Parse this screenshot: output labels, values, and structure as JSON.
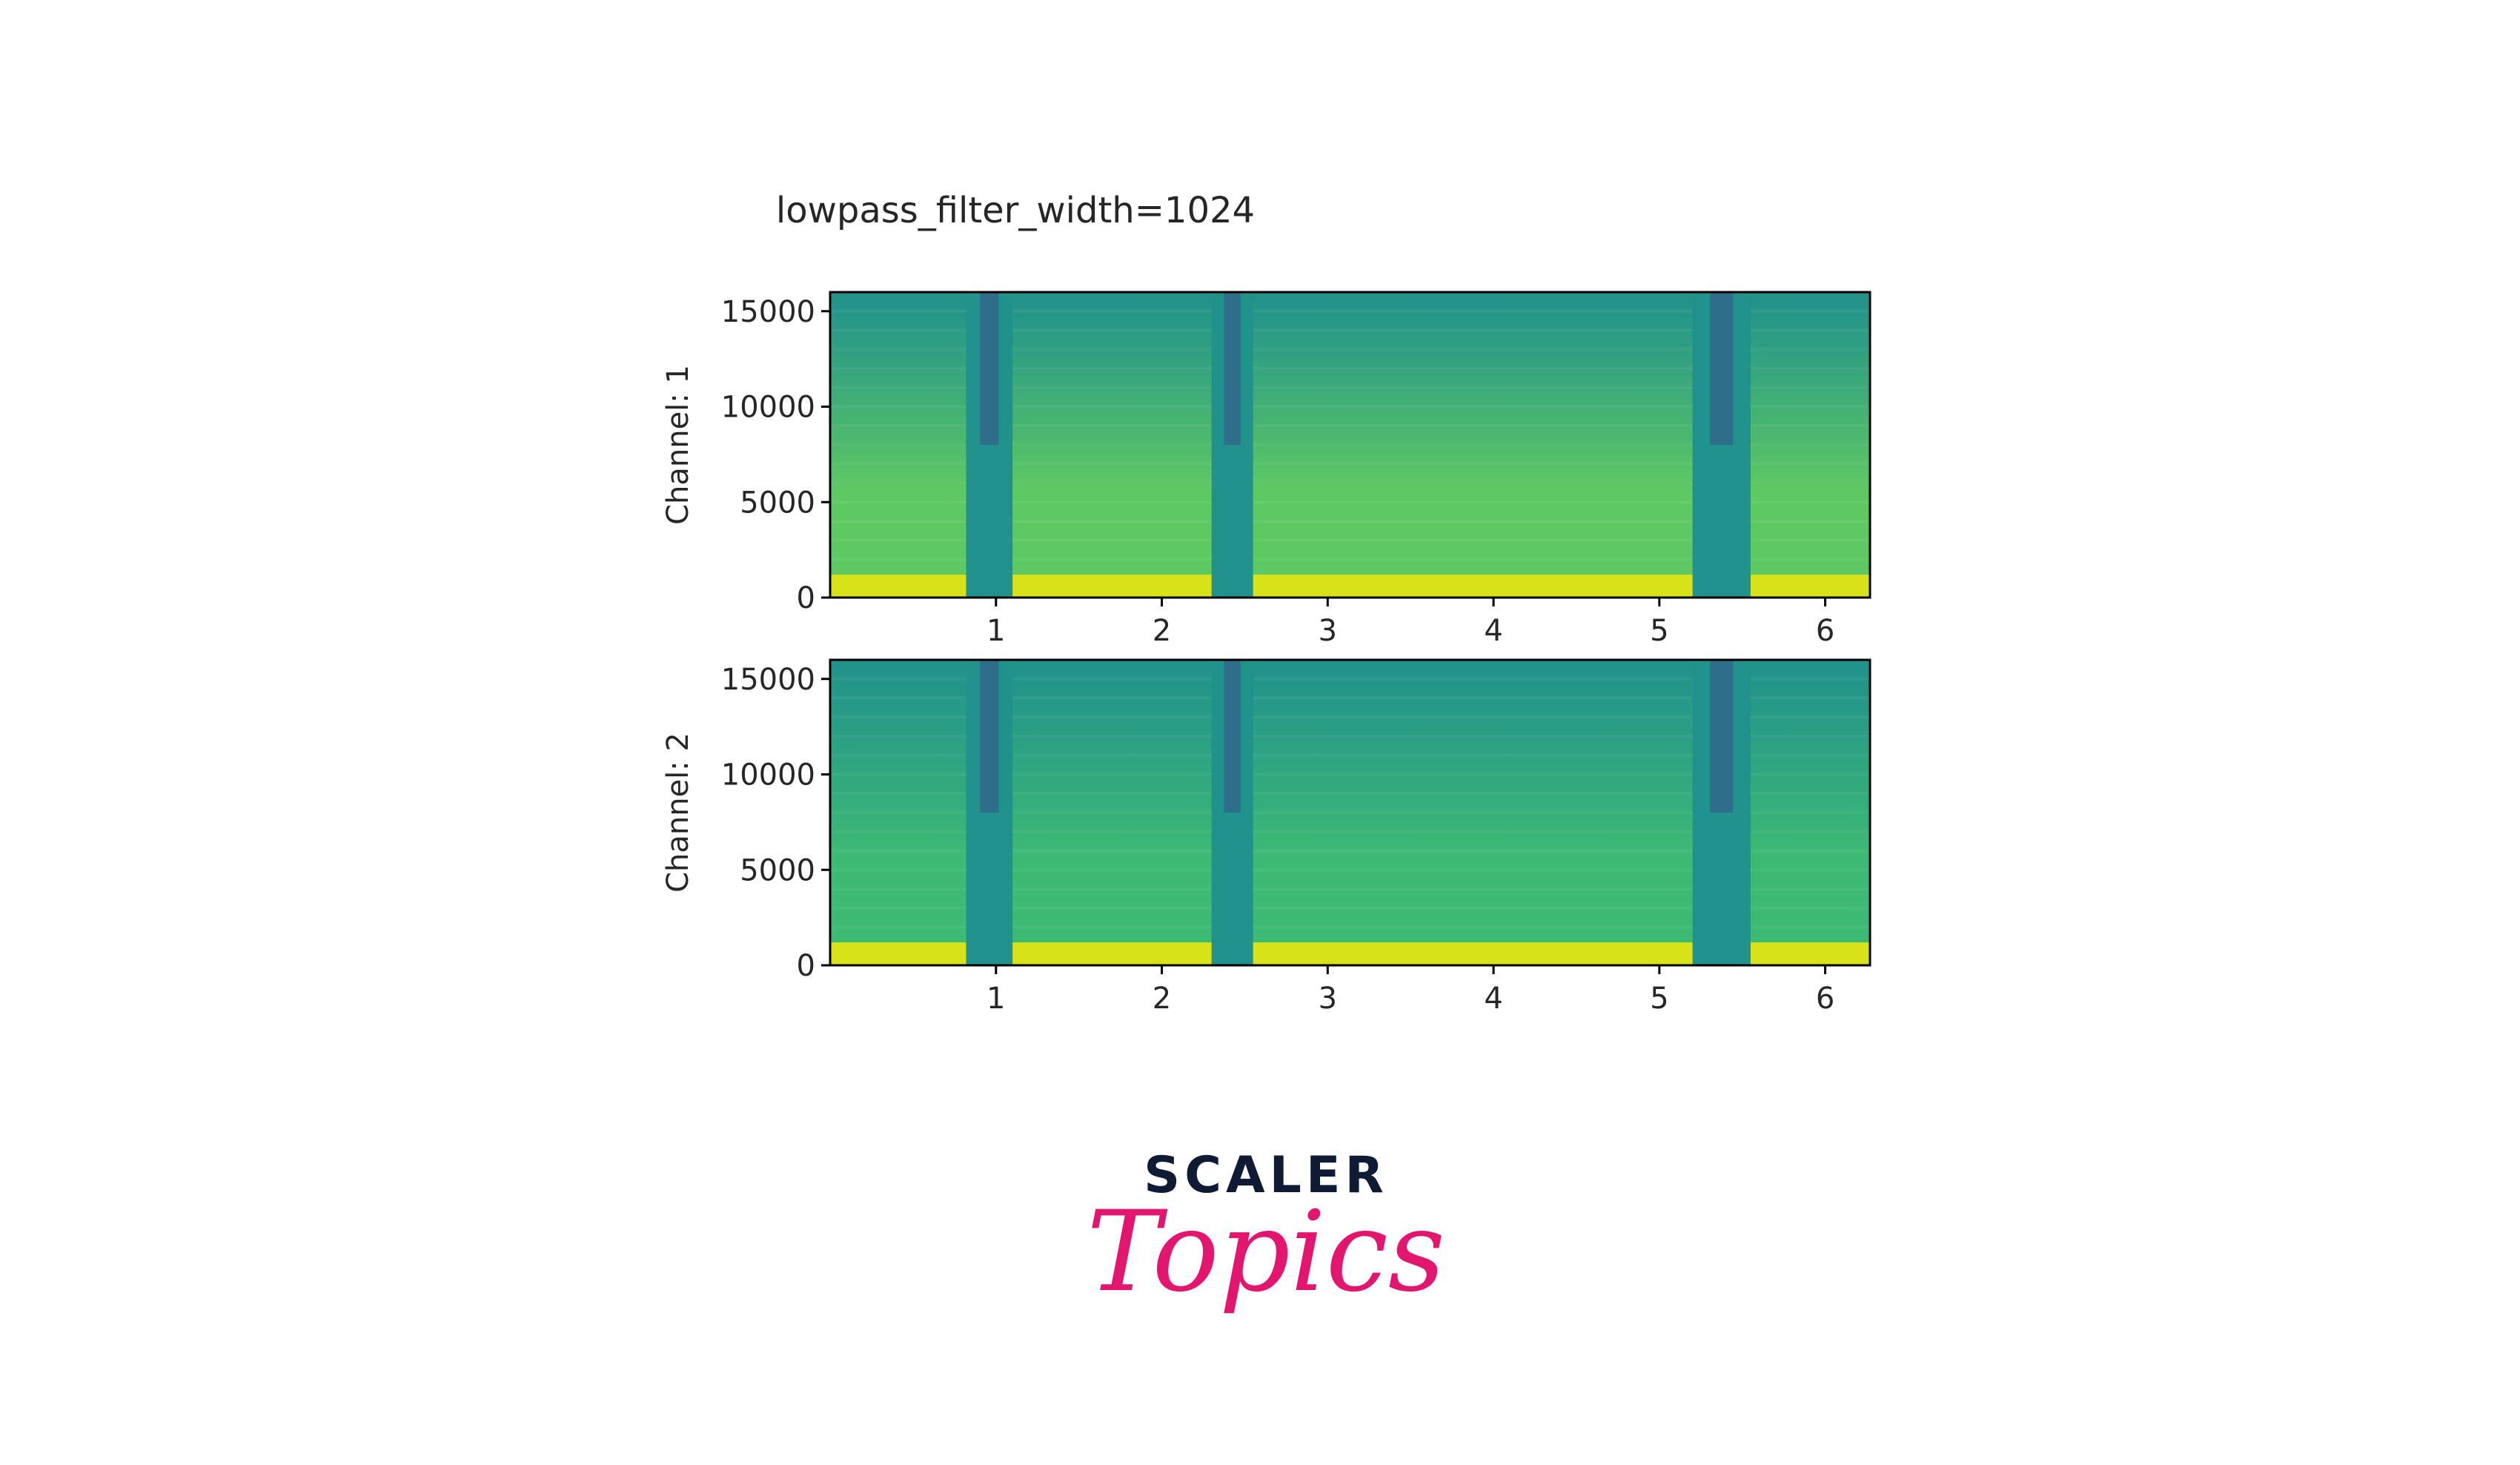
{
  "chart_data": [
    {
      "type": "heatmap",
      "title": "lowpass_filter_width=1024",
      "ylabel": "Channel: 1",
      "xlabel": "",
      "xlim": [
        0,
        6.27
      ],
      "ylim": [
        0,
        16000
      ],
      "xticks": [
        "1",
        "2",
        "3",
        "4",
        "5",
        "6"
      ],
      "yticks": [
        "0",
        "5000",
        "10000",
        "15000"
      ],
      "colormap": "viridis",
      "silent_intervals": [
        [
          0.82,
          1.1
        ],
        [
          2.3,
          2.55
        ],
        [
          5.2,
          5.55
        ]
      ],
      "loud_band_max_hz": 1200,
      "colors": {
        "high": "#d8e219",
        "mid": "#5ec962",
        "low": "#21918c",
        "lowest": "#3b528b"
      }
    },
    {
      "type": "heatmap",
      "title": "",
      "ylabel": "Channel: 2",
      "xlabel": "",
      "xlim": [
        0,
        6.27
      ],
      "ylim": [
        0,
        16000
      ],
      "xticks": [
        "1",
        "2",
        "3",
        "4",
        "5",
        "6"
      ],
      "yticks": [
        "0",
        "5000",
        "10000",
        "15000"
      ],
      "colormap": "viridis",
      "silent_intervals": [
        [
          0.82,
          1.1
        ],
        [
          2.3,
          2.55
        ],
        [
          5.2,
          5.55
        ]
      ],
      "loud_band_max_hz": 1200,
      "colors": {
        "high": "#d8e219",
        "mid": "#3dbb74",
        "low": "#21918c",
        "lowest": "#3b528b"
      }
    }
  ],
  "branding": {
    "line1": "SCALER",
    "line2": "Topics"
  }
}
